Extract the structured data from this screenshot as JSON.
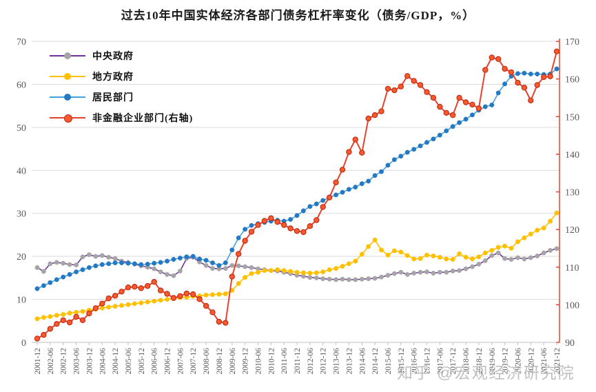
{
  "title": "过去10年中国实体经济各部门债务杠杆率变化（债务/GDP，%）",
  "watermark": "知乎 @宏观经济研究院",
  "left_axis": {
    "ticks": [
      0,
      10,
      20,
      30,
      40,
      50,
      60,
      70
    ],
    "min": 0,
    "max": 70
  },
  "right_axis": {
    "ticks": [
      90,
      100,
      110,
      120,
      130,
      140,
      150,
      160,
      170
    ],
    "min": 90,
    "max": 170,
    "color": "#E8412B"
  },
  "colors": {
    "grid": "#D9D9D9",
    "axis_text": "#595959",
    "bottom_axis": "#BFBFBF"
  },
  "chart_data": {
    "type": "line",
    "frequency": "quarterly",
    "x_tick_labels": [
      "2001-12",
      "2002-06",
      "2002-12",
      "2003-06",
      "2003-12",
      "2004-06",
      "2004-12",
      "2005-06",
      "2005-12",
      "2006-06",
      "2006-12",
      "2007-06",
      "2007-12",
      "2008-06",
      "2008-12",
      "2009-06",
      "2009-12",
      "2010-06",
      "2010-12",
      "2011-06",
      "2011-12",
      "2012-06",
      "2012-12",
      "2013-06",
      "2013-12",
      "2014-06",
      "2014-12",
      "2015-06",
      "2015-12",
      "2016-06",
      "2016-12",
      "2017-06",
      "2017-12",
      "2018-06",
      "2018-12",
      "2019-06",
      "2019-12",
      "2020-06",
      "2020-12",
      "2021-06",
      "2021-12"
    ],
    "left_ylim": [
      0,
      70
    ],
    "right_ylim": [
      90,
      170
    ],
    "grid": "horizontal",
    "legend_position": "top-left-inside",
    "series": [
      {
        "name": "中央政府",
        "axis": "left",
        "line_color": "#7030A0",
        "marker_color": "#A5A5A5",
        "marker_stroke": "#A5A5A5",
        "values": [
          17.4,
          16.5,
          18.3,
          18.6,
          18.4,
          18.1,
          18.0,
          19.9,
          20.4,
          20.0,
          20.2,
          19.8,
          19.5,
          18.9,
          18.6,
          18.2,
          17.8,
          17.5,
          17.1,
          16.4,
          15.8,
          15.5,
          16.6,
          19.5,
          19.8,
          18.7,
          17.9,
          17.2,
          17.1,
          17.2,
          17.9,
          17.8,
          17.6,
          17.4,
          17.1,
          16.9,
          16.7,
          16.6,
          16.3,
          16.0,
          15.6,
          15.4,
          15.1,
          15.0,
          14.8,
          14.7,
          14.6,
          14.7,
          14.6,
          14.6,
          14.7,
          14.8,
          14.9,
          15.2,
          15.6,
          16.0,
          16.3,
          15.8,
          16.1,
          16.3,
          16.4,
          16.1,
          16.3,
          16.3,
          16.6,
          16.7,
          17.1,
          17.6,
          18.2,
          19.0,
          20.2,
          20.8,
          19.5,
          19.3,
          19.7,
          19.4,
          19.7,
          20.1,
          20.8,
          21.4,
          21.8
        ]
      },
      {
        "name": "地方政府",
        "axis": "left",
        "line_color": "#FFC000",
        "marker_color": "#FFC000",
        "marker_stroke": "#FFC000",
        "values": [
          5.5,
          5.8,
          6.0,
          6.3,
          6.5,
          6.8,
          7.0,
          7.2,
          7.5,
          7.7,
          8.0,
          8.2,
          8.4,
          8.6,
          8.8,
          9.0,
          9.2,
          9.4,
          9.6,
          9.8,
          10.0,
          10.2,
          10.4,
          10.5,
          10.7,
          10.8,
          11.0,
          11.1,
          11.2,
          11.3,
          12.1,
          13.7,
          15.1,
          16.0,
          16.3,
          16.7,
          16.7,
          16.9,
          16.7,
          16.5,
          16.3,
          16.2,
          16.1,
          16.2,
          16.4,
          16.9,
          17.2,
          17.7,
          18.3,
          18.9,
          20.5,
          22.3,
          23.8,
          21.5,
          20.3,
          21.3,
          21.0,
          20.2,
          19.4,
          19.5,
          20.3,
          20.1,
          19.8,
          19.4,
          19.3,
          20.6,
          19.8,
          19.4,
          19.9,
          20.8,
          21.4,
          22.1,
          22.4,
          21.9,
          23.4,
          24.3,
          25.2,
          26.1,
          26.6,
          28.2,
          30.1
        ]
      },
      {
        "name": "居民部门",
        "axis": "left",
        "line_color": "#41A1DC",
        "marker_color": "#2479C2",
        "marker_stroke": "#2479C2",
        "values": [
          12.5,
          13.2,
          13.9,
          14.6,
          15.2,
          15.8,
          16.4,
          16.9,
          17.4,
          17.8,
          18.1,
          18.3,
          18.5,
          18.5,
          18.4,
          18.3,
          18.1,
          18.2,
          18.4,
          18.6,
          18.9,
          19.3,
          19.6,
          19.9,
          20.0,
          19.4,
          19.1,
          18.5,
          17.9,
          18.5,
          21.5,
          24.3,
          26.3,
          27.2,
          27.6,
          27.9,
          28.2,
          28.4,
          28.2,
          28.6,
          29.5,
          30.6,
          31.6,
          32.2,
          33.0,
          33.7,
          34.3,
          34.9,
          35.6,
          36.1,
          36.9,
          37.5,
          38.8,
          39.7,
          41.2,
          42.5,
          43.3,
          44.2,
          44.9,
          45.7,
          46.5,
          47.3,
          48.2,
          49.2,
          50.2,
          51.1,
          51.9,
          52.9,
          54.0,
          54.8,
          55.2,
          58.0,
          60.1,
          61.9,
          62.5,
          62.6,
          62.4,
          62.4,
          62.3,
          62.4,
          63.6
        ]
      },
      {
        "name": "非金融企业部门(右轴)",
        "axis": "right",
        "line_color": "#E8412B",
        "marker_color": "#F65A31",
        "marker_stroke": "#C52C10",
        "values": [
          91.0,
          92.0,
          93.6,
          94.9,
          95.9,
          95.3,
          96.8,
          95.9,
          97.7,
          99.1,
          100.3,
          101.7,
          102.4,
          103.5,
          104.6,
          104.8,
          104.4,
          105.0,
          106.1,
          103.8,
          102.9,
          101.8,
          102.3,
          103.0,
          102.8,
          101.5,
          99.7,
          98.0,
          95.5,
          95.2,
          107.5,
          113.5,
          117.0,
          119.4,
          121.2,
          122.3,
          123.0,
          122.0,
          121.2,
          120.3,
          119.6,
          119.3,
          120.9,
          122.5,
          126.0,
          128.5,
          132.5,
          135.9,
          140.6,
          143.9,
          140.4,
          149.5,
          150.4,
          151.4,
          157.4,
          157.0,
          158.0,
          160.8,
          159.5,
          158.4,
          156.5,
          155.0,
          152.6,
          151.0,
          150.4,
          155.0,
          153.8,
          153.2,
          152.2,
          162.4,
          165.7,
          165.3,
          162.7,
          161.8,
          159.0,
          157.7,
          154.3,
          158.4,
          160.5,
          160.7,
          167.3
        ]
      }
    ]
  }
}
